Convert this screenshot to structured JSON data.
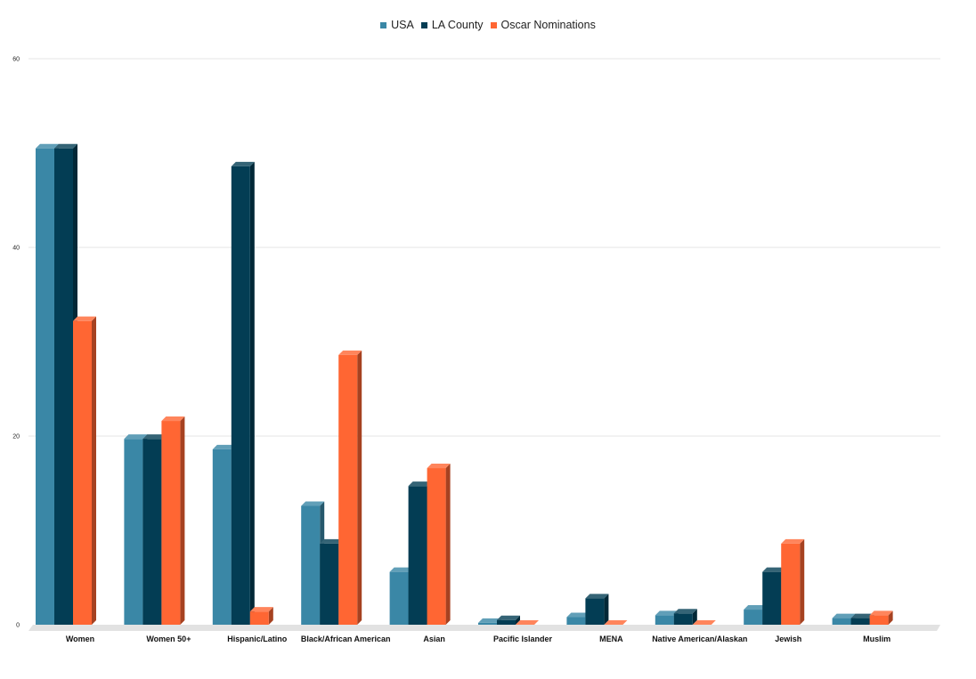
{
  "chart_data": {
    "type": "bar",
    "style": "3d-clustered-column",
    "categories": [
      "Women",
      "Women 50+",
      "Hispanic/Latino",
      "Black/African American",
      "Asian",
      "Pacific Islander",
      "MENA",
      "Native American/Alaskan",
      "Jewish",
      "Muslim"
    ],
    "series": [
      {
        "name": "USA",
        "color": "#3a87a6",
        "values": [
          50.5,
          19.7,
          18.6,
          12.6,
          5.6,
          0.2,
          0.8,
          1.0,
          1.6,
          0.7
        ]
      },
      {
        "name": "LA County",
        "color": "#033d54",
        "values": [
          50.5,
          19.7,
          48.6,
          8.6,
          14.7,
          0.5,
          2.8,
          1.2,
          5.6,
          0.7
        ]
      },
      {
        "name": "Oscar Nominations",
        "color": "#ff6633",
        "values": [
          32.2,
          21.6,
          1.4,
          28.6,
          16.6,
          0.0,
          0.0,
          0.0,
          8.6,
          1.0
        ]
      }
    ],
    "yticks": [
      0,
      20,
      40,
      60
    ],
    "ylim": [
      0,
      60
    ],
    "grid": true,
    "legend_position": "top-center"
  }
}
